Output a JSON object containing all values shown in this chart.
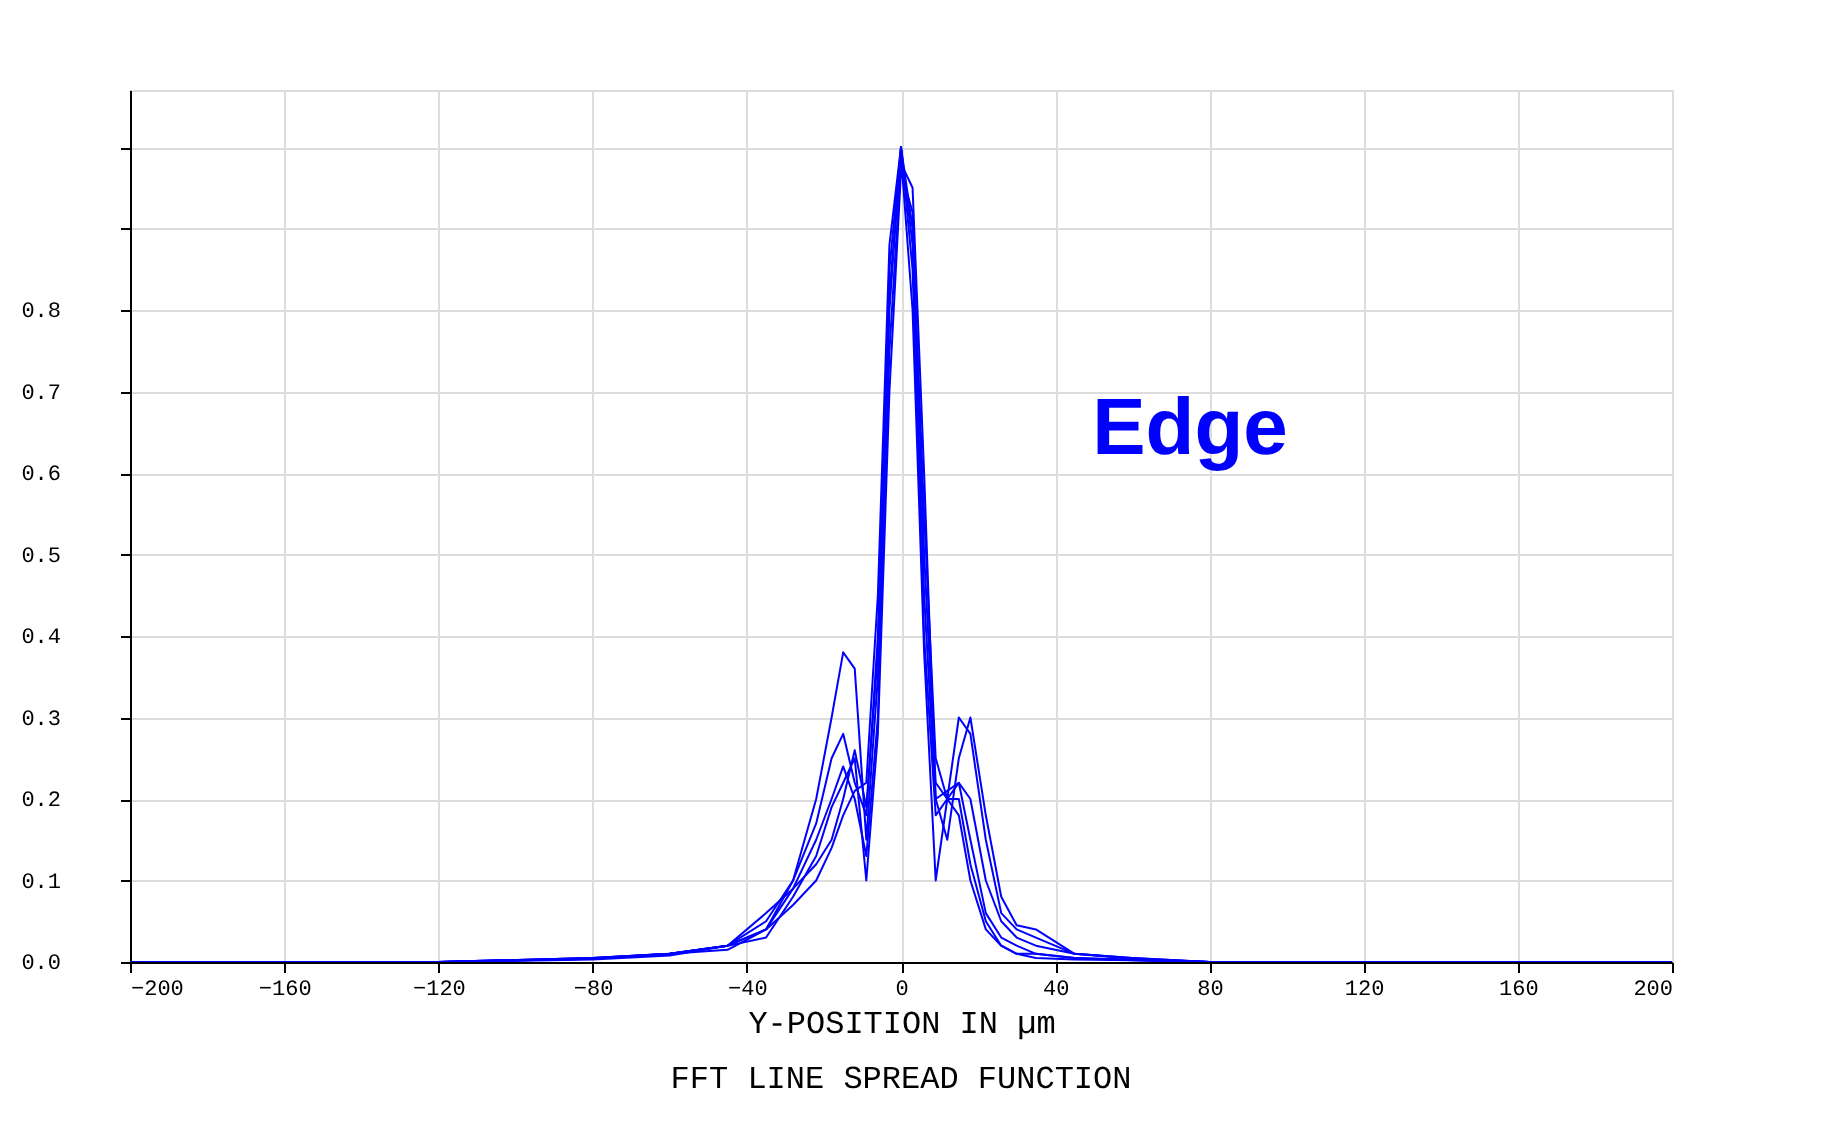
{
  "chart_data": {
    "type": "line",
    "title": "FFT LINE SPREAD FUNCTION",
    "xlabel": "Y-POSITION IN µm",
    "annotations": [
      "Edge"
    ],
    "x": [
      -200,
      -120,
      -80,
      -60,
      -45,
      -35,
      -28,
      -22,
      -18,
      -15,
      -12,
      -9,
      -6,
      -3,
      0,
      3,
      6,
      9,
      12,
      15,
      18,
      22,
      26,
      30,
      35,
      45,
      60,
      80,
      120,
      200
    ],
    "series": [
      {
        "color": "#0000ff",
        "values": [
          0,
          0,
          0.005,
          0.01,
          0.02,
          0.04,
          0.1,
          0.2,
          0.3,
          0.38,
          0.36,
          0.15,
          0.35,
          0.8,
          1.0,
          0.85,
          0.4,
          0.18,
          0.2,
          0.22,
          0.15,
          0.06,
          0.03,
          0.02,
          0.01,
          0.005,
          0.003,
          0,
          0,
          0
        ]
      },
      {
        "color": "#0000ff",
        "values": [
          0,
          0,
          0.005,
          0.01,
          0.02,
          0.05,
          0.1,
          0.17,
          0.25,
          0.28,
          0.22,
          0.18,
          0.4,
          0.85,
          1.0,
          0.9,
          0.55,
          0.25,
          0.2,
          0.3,
          0.28,
          0.15,
          0.06,
          0.04,
          0.03,
          0.01,
          0.005,
          0,
          0,
          0
        ]
      },
      {
        "color": "#0000ff",
        "values": [
          0,
          0,
          0.005,
          0.01,
          0.015,
          0.04,
          0.09,
          0.15,
          0.2,
          0.24,
          0.2,
          0.13,
          0.3,
          0.75,
          0.98,
          0.95,
          0.6,
          0.2,
          0.15,
          0.25,
          0.3,
          0.18,
          0.08,
          0.045,
          0.04,
          0.01,
          0.005,
          0,
          0,
          0
        ]
      },
      {
        "color": "#0000ff",
        "values": [
          0,
          0,
          0.003,
          0.008,
          0.02,
          0.03,
          0.08,
          0.13,
          0.19,
          0.22,
          0.25,
          0.1,
          0.28,
          0.7,
          0.97,
          0.92,
          0.5,
          0.22,
          0.2,
          0.2,
          0.12,
          0.05,
          0.02,
          0.01,
          0.01,
          0.005,
          0.002,
          0,
          0,
          0
        ]
      },
      {
        "color": "#0000ff",
        "values": [
          0,
          0,
          0.004,
          0.01,
          0.02,
          0.06,
          0.09,
          0.12,
          0.15,
          0.2,
          0.26,
          0.19,
          0.38,
          0.82,
          0.99,
          0.8,
          0.38,
          0.1,
          0.2,
          0.18,
          0.1,
          0.04,
          0.02,
          0.01,
          0.005,
          0.003,
          0.002,
          0,
          0,
          0
        ]
      },
      {
        "color": "#0000ff",
        "values": [
          0,
          0,
          0.004,
          0.01,
          0.02,
          0.04,
          0.07,
          0.1,
          0.14,
          0.18,
          0.21,
          0.22,
          0.45,
          0.88,
          1.0,
          0.88,
          0.45,
          0.2,
          0.21,
          0.22,
          0.2,
          0.1,
          0.05,
          0.03,
          0.02,
          0.01,
          0.004,
          0,
          0,
          0
        ]
      }
    ],
    "xlim": [
      -200,
      200
    ],
    "xticks": [
      -200,
      -160,
      -120,
      -80,
      -40,
      0,
      40,
      80,
      120,
      160,
      200
    ],
    "ylim": [
      0,
      1.07
    ],
    "yticks": [
      {
        "value": 0,
        "label": "0.0"
      },
      0.1,
      0.2,
      0.3,
      0.4,
      0.5,
      0.6,
      0.7,
      0.8,
      {
        "value": 0.9,
        "label": null
      },
      {
        "value": 1.0,
        "label": null
      }
    ],
    "grid": true,
    "legend": false,
    "marker": "none",
    "line_style": "solid"
  }
}
